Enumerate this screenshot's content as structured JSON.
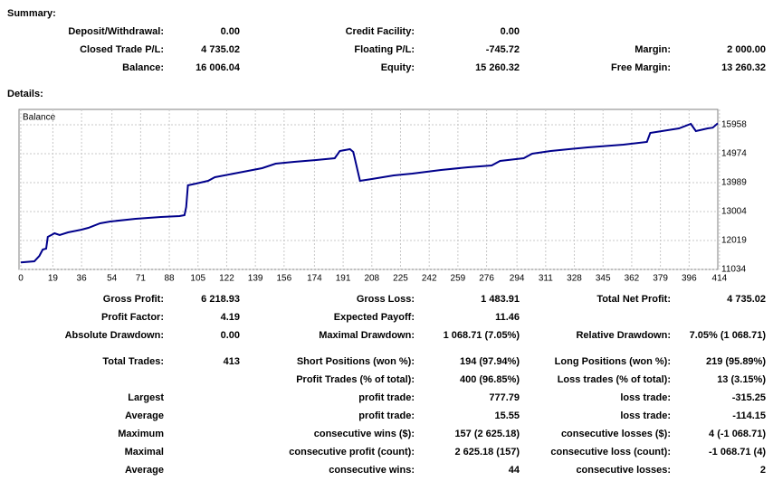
{
  "summary": {
    "title": "Summary:",
    "rows": [
      [
        "Deposit/Withdrawal:",
        "0.00",
        "Credit Facility:",
        "0.00",
        null,
        null
      ],
      [
        "Closed Trade P/L:",
        "4 735.02",
        "Floating P/L:",
        "-745.72",
        "Margin:",
        "2 000.00"
      ],
      [
        "Balance:",
        "16 006.04",
        "Equity:",
        "15 260.32",
        "Free Margin:",
        "13 260.32"
      ]
    ]
  },
  "details": {
    "title": "Details:",
    "rows": [
      [
        "Gross Profit:",
        "6 218.93",
        "Gross Loss:",
        "1 483.91",
        "Total Net Profit:",
        "4 735.02"
      ],
      [
        "Profit Factor:",
        "4.19",
        "Expected Payoff:",
        "11.46",
        null,
        null
      ],
      [
        "Absolute Drawdown:",
        "0.00",
        "Maximal Drawdown:",
        "1 068.71 (7.05%)",
        "Relative Drawdown:",
        "7.05% (1 068.71)"
      ],
      [
        "Total Trades:",
        "413",
        "Short Positions (won %):",
        "194 (97.94%)",
        "Long Positions (won %):",
        "219 (95.89%)"
      ],
      [
        null,
        null,
        "Profit Trades (% of total):",
        "400 (96.85%)",
        "Loss trades (% of total):",
        "13 (3.15%)"
      ],
      [
        "Largest",
        null,
        "profit trade:",
        "777.79",
        "loss trade:",
        "-315.25"
      ],
      [
        "Average",
        null,
        "profit trade:",
        "15.55",
        "loss trade:",
        "-114.15"
      ],
      [
        "Maximum",
        null,
        "consecutive wins ($):",
        "157 (2 625.18)",
        "consecutive losses ($):",
        "4 (-1 068.71)"
      ],
      [
        "Maximal",
        null,
        "consecutive profit (count):",
        "2 625.18 (157)",
        "consecutive loss (count):",
        "-1 068.71 (4)"
      ],
      [
        "Average",
        null,
        "consecutive wins:",
        "44",
        "consecutive losses:",
        "2"
      ]
    ]
  },
  "chart_data": {
    "type": "line",
    "series": [
      {
        "name": "Balance",
        "color": "#00008b",
        "x": [
          0,
          8,
          11,
          13,
          15,
          16,
          18,
          20,
          23,
          28,
          36,
          40,
          47,
          53,
          68,
          83,
          94,
          97,
          98,
          99,
          104,
          111,
          115,
          129,
          143,
          151,
          162,
          175,
          186,
          189,
          195,
          197,
          201,
          208,
          221,
          232,
          249,
          265,
          279,
          284,
          298,
          303,
          314,
          336,
          357,
          371,
          373,
          390,
          397,
          400,
          407,
          410,
          413
        ],
        "values": [
          11271,
          11311,
          11496,
          11711,
          11742,
          12142,
          12203,
          12265,
          12203,
          12296,
          12388,
          12449,
          12603,
          12665,
          12757,
          12819,
          12849,
          12880,
          13157,
          13896,
          13957,
          14050,
          14173,
          14326,
          14480,
          14634,
          14696,
          14757,
          14819,
          15065,
          15126,
          15034,
          14050,
          14111,
          14234,
          14296,
          14419,
          14511,
          14573,
          14726,
          14819,
          14973,
          15065,
          15188,
          15280,
          15373,
          15680,
          15834,
          15988,
          15742,
          15834,
          15860,
          16006.04
        ]
      }
    ],
    "xlim": [
      0,
      413
    ],
    "ylim": [
      11034,
      16481
    ],
    "xticks": [
      0,
      19,
      36,
      54,
      71,
      88,
      105,
      122,
      139,
      156,
      174,
      191,
      208,
      225,
      242,
      259,
      276,
      294,
      311,
      328,
      345,
      362,
      379,
      396,
      414
    ],
    "yticks": [
      11034,
      12019,
      13004,
      13989,
      14974,
      15958
    ],
    "grid": true
  }
}
